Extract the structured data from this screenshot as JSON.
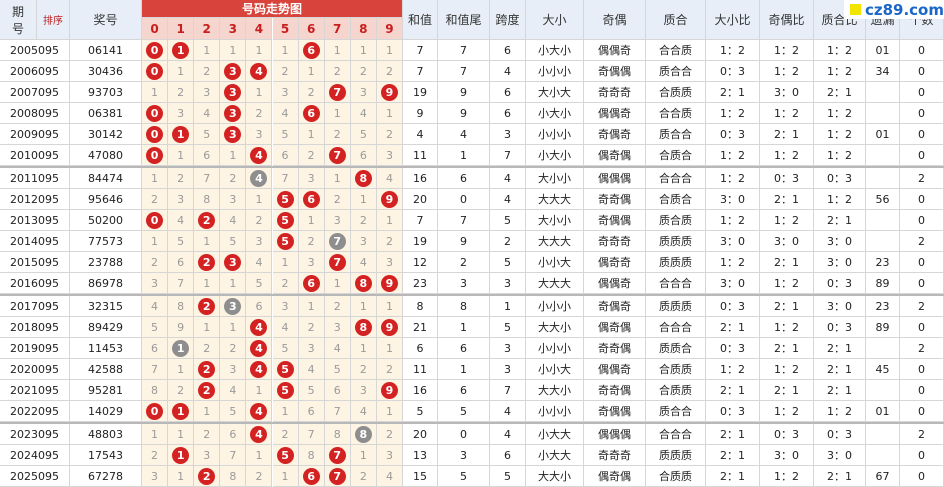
{
  "logo": "cz89.com",
  "header": {
    "period": "期号",
    "sort": "排序",
    "number": "奖号",
    "trend_title": "号码走势图",
    "digits": [
      0,
      1,
      2,
      3,
      4,
      5,
      6,
      7,
      8,
      9
    ],
    "columns": [
      "和值",
      "和值尾",
      "跨度",
      "大小",
      "奇偶",
      "质合",
      "大小比",
      "奇偶比",
      "质合比",
      "遗漏",
      "个数"
    ]
  },
  "groups": [
    {
      "rows": [
        {
          "period": "2005095",
          "number": "06141",
          "trend": [
            0,
            1,
            1,
            1,
            1,
            1,
            6,
            1,
            1,
            1
          ],
          "hit": [
            0,
            1,
            6
          ],
          "repeat": [],
          "cols": [
            "7",
            "7",
            "6",
            "小大小",
            "偶偶奇",
            "合合质",
            "1：2",
            "1：2",
            "1：2",
            "01",
            "0"
          ]
        },
        {
          "period": "2006095",
          "number": "30436",
          "trend": [
            0,
            1,
            2,
            3,
            4,
            2,
            1,
            2,
            2,
            2
          ],
          "hit": [
            0,
            3,
            4
          ],
          "repeat": [],
          "cols": [
            "7",
            "7",
            "4",
            "小小小",
            "奇偶偶",
            "质合合",
            "0：3",
            "1：2",
            "1：2",
            "34",
            "0"
          ]
        },
        {
          "period": "2007095",
          "number": "93703",
          "trend": [
            1,
            2,
            3,
            3,
            1,
            3,
            2,
            7,
            3,
            9
          ],
          "hit": [
            3,
            7,
            9
          ],
          "repeat": [],
          "cols": [
            "19",
            "9",
            "6",
            "大小大",
            "奇奇奇",
            "合质质",
            "2：1",
            "3：0",
            "2：1",
            null,
            "0"
          ]
        },
        {
          "period": "2008095",
          "number": "06381",
          "trend": [
            0,
            3,
            4,
            3,
            2,
            4,
            6,
            1,
            4,
            1
          ],
          "hit": [
            0,
            3,
            6
          ],
          "repeat": [],
          "cols": [
            "9",
            "9",
            "6",
            "小大小",
            "偶偶奇",
            "合合质",
            "1：2",
            "1：2",
            "1：2",
            null,
            "0"
          ]
        },
        {
          "period": "2009095",
          "number": "30142",
          "trend": [
            0,
            1,
            5,
            3,
            3,
            5,
            1,
            2,
            5,
            2
          ],
          "hit": [
            0,
            1,
            3
          ],
          "repeat": [],
          "cols": [
            "4",
            "4",
            "3",
            "小小小",
            "奇偶奇",
            "质合合",
            "0：3",
            "2：1",
            "1：2",
            "01",
            "0"
          ]
        },
        {
          "period": "2010095",
          "number": "47080",
          "trend": [
            0,
            1,
            6,
            1,
            4,
            6,
            2,
            7,
            6,
            3
          ],
          "hit": [
            0,
            4,
            7
          ],
          "repeat": [],
          "cols": [
            "11",
            "1",
            "7",
            "小大小",
            "偶奇偶",
            "合质合",
            "1：2",
            "1：2",
            "1：2",
            null,
            "0"
          ]
        }
      ]
    },
    {
      "rows": [
        {
          "period": "2011095",
          "number": "84474",
          "trend": [
            1,
            2,
            7,
            2,
            4,
            7,
            3,
            1,
            8,
            4
          ],
          "hit": [
            8
          ],
          "repeat": [
            4
          ],
          "cols": [
            "16",
            "6",
            "4",
            "大小小",
            "偶偶偶",
            "合合合",
            "1：2",
            "0：3",
            "0：3",
            null,
            "2"
          ]
        },
        {
          "period": "2012095",
          "number": "95646",
          "trend": [
            2,
            3,
            8,
            3,
            1,
            5,
            6,
            2,
            1,
            9
          ],
          "hit": [
            5,
            6,
            9
          ],
          "repeat": [],
          "cols": [
            "20",
            "0",
            "4",
            "大大大",
            "奇奇偶",
            "合质合",
            "3：0",
            "2：1",
            "1：2",
            "56",
            "0"
          ]
        },
        {
          "period": "2013095",
          "number": "50200",
          "trend": [
            0,
            4,
            2,
            4,
            2,
            5,
            1,
            3,
            2,
            1
          ],
          "hit": [
            0,
            2,
            5
          ],
          "repeat": [],
          "cols": [
            "7",
            "7",
            "5",
            "大小小",
            "奇偶偶",
            "质合质",
            "1：2",
            "1：2",
            "2：1",
            null,
            "0"
          ]
        },
        {
          "period": "2014095",
          "number": "77573",
          "trend": [
            1,
            5,
            1,
            5,
            3,
            5,
            2,
            7,
            3,
            2
          ],
          "hit": [
            5
          ],
          "repeat": [
            7
          ],
          "cols": [
            "19",
            "9",
            "2",
            "大大大",
            "奇奇奇",
            "质质质",
            "3：0",
            "3：0",
            "3：0",
            null,
            "2"
          ]
        },
        {
          "period": "2015095",
          "number": "23788",
          "trend": [
            2,
            6,
            2,
            3,
            4,
            1,
            3,
            7,
            4,
            3
          ],
          "hit": [
            2,
            3,
            7
          ],
          "repeat": [],
          "cols": [
            "12",
            "2",
            "5",
            "小小大",
            "偶奇奇",
            "质质质",
            "1：2",
            "2：1",
            "3：0",
            "23",
            "0"
          ]
        },
        {
          "period": "2016095",
          "number": "86978",
          "trend": [
            3,
            7,
            1,
            1,
            5,
            2,
            6,
            1,
            8,
            9
          ],
          "hit": [
            6,
            8,
            9
          ],
          "repeat": [],
          "cols": [
            "23",
            "3",
            "3",
            "大大大",
            "偶偶奇",
            "合合合",
            "3：0",
            "1：2",
            "0：3",
            "89",
            "0"
          ]
        }
      ]
    },
    {
      "rows": [
        {
          "period": "2017095",
          "number": "32315",
          "trend": [
            4,
            8,
            2,
            3,
            6,
            3,
            1,
            2,
            1,
            1
          ],
          "hit": [
            2
          ],
          "repeat": [
            3
          ],
          "cols": [
            "8",
            "8",
            "1",
            "小小小",
            "奇偶奇",
            "质质质",
            "0：3",
            "2：1",
            "3：0",
            "23",
            "2"
          ]
        },
        {
          "period": "2018095",
          "number": "89429",
          "trend": [
            5,
            9,
            1,
            1,
            4,
            4,
            2,
            3,
            8,
            9
          ],
          "hit": [
            4,
            8,
            9
          ],
          "repeat": [],
          "cols": [
            "21",
            "1",
            "5",
            "大大小",
            "偶奇偶",
            "合合合",
            "2：1",
            "1：2",
            "0：3",
            "89",
            "0"
          ]
        },
        {
          "period": "2019095",
          "number": "11453",
          "trend": [
            6,
            1,
            2,
            2,
            4,
            5,
            3,
            4,
            1,
            1
          ],
          "hit": [
            4
          ],
          "repeat": [
            1
          ],
          "cols": [
            "6",
            "6",
            "3",
            "小小小",
            "奇奇偶",
            "质质合",
            "0：3",
            "2：1",
            "2：1",
            null,
            "2"
          ]
        },
        {
          "period": "2020095",
          "number": "42588",
          "trend": [
            7,
            1,
            2,
            3,
            4,
            5,
            4,
            5,
            2,
            2
          ],
          "hit": [
            2,
            4,
            5
          ],
          "repeat": [],
          "cols": [
            "11",
            "1",
            "3",
            "小小大",
            "偶偶奇",
            "合质质",
            "1：2",
            "1：2",
            "2：1",
            "45",
            "0"
          ]
        },
        {
          "period": "2021095",
          "number": "95281",
          "trend": [
            8,
            2,
            2,
            4,
            1,
            5,
            5,
            6,
            3,
            9
          ],
          "hit": [
            2,
            5,
            9
          ],
          "repeat": [],
          "cols": [
            "16",
            "6",
            "7",
            "大大小",
            "奇奇偶",
            "合质质",
            "2：1",
            "2：1",
            "2：1",
            null,
            "0"
          ]
        },
        {
          "period": "2022095",
          "number": "14029",
          "trend": [
            0,
            1,
            1,
            5,
            4,
            1,
            6,
            7,
            4,
            1
          ],
          "hit": [
            0,
            1,
            4
          ],
          "repeat": [],
          "cols": [
            "5",
            "5",
            "4",
            "小小小",
            "奇偶偶",
            "质合合",
            "0：3",
            "1：2",
            "1：2",
            "01",
            "0"
          ]
        }
      ]
    },
    {
      "rows": [
        {
          "period": "2023095",
          "number": "48803",
          "trend": [
            1,
            1,
            2,
            6,
            4,
            2,
            7,
            8,
            8,
            2
          ],
          "hit": [
            4
          ],
          "repeat": [
            8
          ],
          "cols": [
            "20",
            "0",
            "4",
            "小大大",
            "偶偶偶",
            "合合合",
            "2：1",
            "0：3",
            "0：3",
            null,
            "2"
          ]
        },
        {
          "period": "2024095",
          "number": "17543",
          "trend": [
            2,
            1,
            3,
            7,
            1,
            5,
            8,
            7,
            1,
            3
          ],
          "hit": [
            1,
            5,
            7
          ],
          "repeat": [],
          "cols": [
            "13",
            "3",
            "6",
            "小大大",
            "奇奇奇",
            "质质质",
            "2：1",
            "3：0",
            "3：0",
            null,
            "0"
          ]
        },
        {
          "period": "2025095",
          "number": "67278",
          "trend": [
            3,
            1,
            2,
            8,
            2,
            1,
            6,
            7,
            2,
            4
          ],
          "hit": [
            2,
            6,
            7
          ],
          "repeat": [],
          "cols": [
            "15",
            "5",
            "5",
            "大大小",
            "偶奇偶",
            "合质质",
            "2：1",
            "1：2",
            "2：1",
            "67",
            "0"
          ]
        }
      ]
    }
  ]
}
